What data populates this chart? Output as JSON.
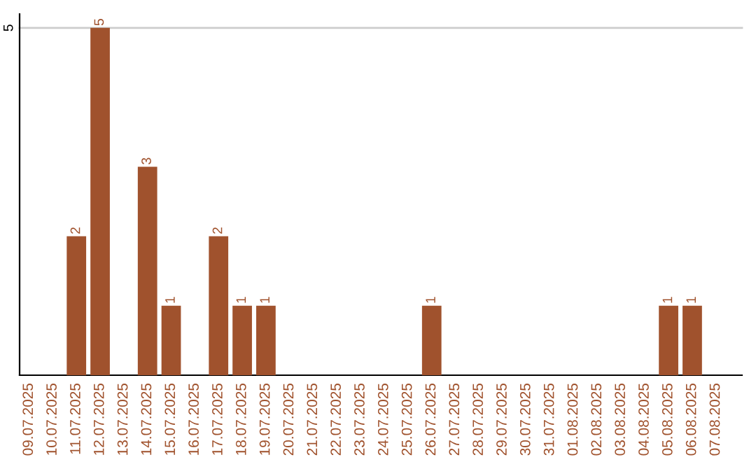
{
  "chart_data": {
    "type": "bar",
    "categories": [
      "09.07.2025",
      "10.07.2025",
      "11.07.2025",
      "12.07.2025",
      "13.07.2025",
      "14.07.2025",
      "15.07.2025",
      "16.07.2025",
      "17.07.2025",
      "18.07.2025",
      "19.07.2025",
      "20.07.2025",
      "21.07.2025",
      "22.07.2025",
      "23.07.2025",
      "24.07.2025",
      "25.07.2025",
      "26.07.2025",
      "27.07.2025",
      "28.07.2025",
      "29.07.2025",
      "30.07.2025",
      "31.07.2025",
      "01.08.2025",
      "02.08.2025",
      "03.08.2025",
      "04.08.2025",
      "05.08.2025",
      "06.08.2025",
      "07.08.2025"
    ],
    "values": [
      0,
      0,
      2,
      5,
      0,
      3,
      1,
      0,
      2,
      1,
      1,
      0,
      0,
      0,
      0,
      0,
      0,
      1,
      0,
      0,
      0,
      0,
      0,
      0,
      0,
      0,
      0,
      1,
      1,
      0
    ],
    "value_labels": [
      null,
      null,
      "2",
      "5",
      null,
      "3",
      "1",
      null,
      "2",
      "1",
      "1",
      null,
      null,
      null,
      null,
      null,
      null,
      "1",
      null,
      null,
      null,
      null,
      null,
      null,
      null,
      null,
      null,
      "1",
      "1",
      null
    ],
    "color": "#a0522d",
    "ylim": [
      0,
      5.2
    ],
    "yticks": [
      5
    ],
    "grid": "y",
    "legend": false
  }
}
